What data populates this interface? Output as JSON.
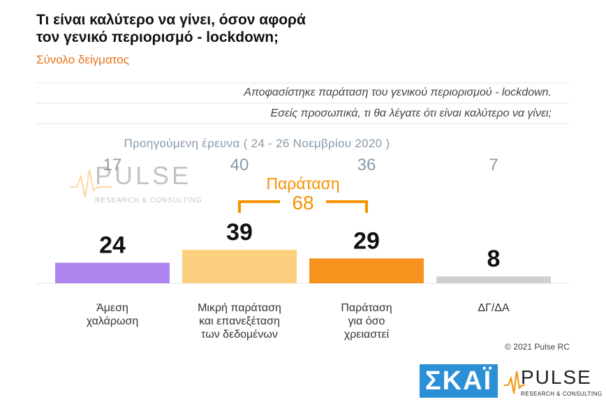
{
  "title_line1": "Τι είναι καλύτερο να γίνει, όσον αφορά",
  "title_line2": "τον γενικό περιορισμό - lockdown;",
  "subtitle": "Σύνολο δείγματος",
  "question_line1": "Αποφασίστηκε παράταση του γενικού περιορισμού - lockdown.",
  "question_line2": "Εσείς προσωπικά, τι θα λέγατε ότι είναι καλύτερο να γίνει;",
  "prev_survey_label": "Προηγούμενη έρευνα  ( 24 - 26  Νοεμβρίου  2020 )",
  "bracket": {
    "label": "Παράταση",
    "value": "68",
    "color": "#f39200"
  },
  "copyright": "© 2021 Pulse RC",
  "logos": {
    "skai": "ΣΚΑΪ",
    "pulse": "PULSE",
    "pulse_tag": "RESEARCH & CONSULTING"
  },
  "chart_data": {
    "type": "bar",
    "categories": [
      [
        "Άμεση",
        "χαλάρωση"
      ],
      [
        "Μικρή παράταση",
        "και επανεξέταση",
        "των δεδομένων"
      ],
      [
        "Παράταση",
        "για όσο",
        "χρειαστεί"
      ],
      [
        "ΔΓ/ΔΑ"
      ]
    ],
    "values": [
      24,
      39,
      29,
      8
    ],
    "previous_values": [
      17,
      40,
      36,
      7
    ],
    "colors": [
      "#b084ef",
      "#fdd080",
      "#f7921e",
      "#d0d0d0"
    ],
    "ylim": [
      0,
      100
    ]
  }
}
